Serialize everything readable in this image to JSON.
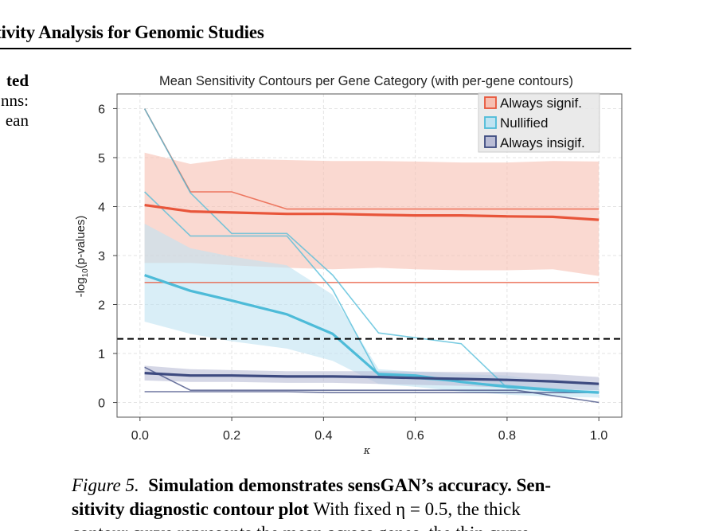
{
  "page": {
    "running_head": "tivity Analysis for Genomic Studies",
    "left_column_fragments": [
      "ted",
      "nns:",
      "ean"
    ],
    "caption": {
      "label": "Figure 5.",
      "title": "Simulation demonstrates sensGAN’s accuracy. Sensitivity diagnostic contour plot",
      "title_line1": "Simulation demonstrates sensGAN’s accuracy. Sen-",
      "title_line2": "sitivity diagnostic contour plot",
      "body": "With fixed η = 0.5, the thick",
      "body_line3": "contour curve represents the mean across genes, the thin curve"
    }
  },
  "colors": {
    "always_signif": "#e8553a",
    "always_signif_band": "#f6bfb2",
    "nullified": "#4dbbd8",
    "nullified_band": "#bfe3f1",
    "always_insignif": "#3d4a80",
    "always_insignif_band": "#b9bcd5",
    "threshold_line": "#000000",
    "grid": "#e3e3e3"
  },
  "chart_data": {
    "type": "line",
    "title": "Mean Sensitivity Contours per Gene Category (with per-gene contours)",
    "xlabel": "κ",
    "ylabel": "-log10(p-values)",
    "ylabel_main": "-log",
    "ylabel_sub": "10",
    "ylabel_tail": "(p-values)",
    "xlim": [
      -0.05,
      1.05
    ],
    "ylim": [
      -0.3,
      6.3
    ],
    "xticks": [
      0.0,
      0.2,
      0.4,
      0.6,
      0.8,
      1.0
    ],
    "xtick_labels": [
      "0.0",
      "0.2",
      "0.4",
      "0.6",
      "0.8",
      "1.0"
    ],
    "yticks": [
      0,
      1,
      2,
      3,
      4,
      5,
      6
    ],
    "ytick_labels": [
      "0",
      "1",
      "2",
      "3",
      "4",
      "5",
      "6"
    ],
    "grid": true,
    "legend_position": "top-right",
    "legend": [
      "Always signif.",
      "Nullified",
      "Always insigif."
    ],
    "threshold": 1.3,
    "x": [
      0.01,
      0.11,
      0.2,
      0.32,
      0.42,
      0.52,
      0.6,
      0.7,
      0.8,
      0.9,
      1.0
    ],
    "series": [
      {
        "name": "Always signif.",
        "color_key": "always_signif",
        "mean": [
          4.03,
          3.9,
          3.88,
          3.85,
          3.85,
          3.83,
          3.82,
          3.82,
          3.8,
          3.79,
          3.73
        ],
        "band_upper": [
          5.1,
          4.87,
          4.98,
          4.95,
          4.93,
          4.93,
          4.92,
          4.9,
          4.9,
          4.93,
          4.92
        ],
        "band_lower": [
          2.85,
          2.85,
          2.8,
          2.75,
          2.72,
          2.75,
          2.72,
          2.7,
          2.7,
          2.72,
          2.58
        ],
        "per_gene": [
          {
            "x": [
              0.01,
              0.11,
              0.2,
              0.32,
              1.0
            ],
            "y": [
              6.0,
              4.3,
              4.3,
              3.95,
              3.95
            ]
          },
          {
            "x": [
              0.01,
              1.0
            ],
            "y": [
              2.45,
              2.45
            ]
          }
        ]
      },
      {
        "name": "Nullified",
        "color_key": "nullified",
        "mean": [
          2.6,
          2.28,
          2.08,
          1.8,
          1.4,
          0.58,
          0.55,
          0.42,
          0.32,
          0.25,
          0.2
        ],
        "band_upper": [
          3.65,
          3.15,
          2.98,
          2.8,
          2.2,
          0.68,
          0.63,
          0.58,
          0.55,
          0.42,
          0.35
        ],
        "band_lower": [
          1.65,
          1.4,
          1.25,
          1.1,
          0.85,
          0.38,
          0.32,
          0.22,
          0.16,
          0.12,
          0.1
        ],
        "per_gene": [
          {
            "x": [
              0.01,
              0.11,
              0.2,
              0.32,
              0.42,
              0.52,
              0.7,
              0.8,
              1.0
            ],
            "y": [
              6.0,
              4.28,
              3.45,
              3.45,
              2.6,
              1.42,
              1.2,
              0.3,
              0.22
            ]
          },
          {
            "x": [
              0.01,
              0.11,
              0.32,
              0.42,
              0.52,
              1.0
            ],
            "y": [
              4.3,
              3.4,
              3.4,
              2.3,
              0.55,
              0.2
            ]
          }
        ]
      },
      {
        "name": "Always insigif.",
        "color_key": "always_insignif",
        "mean": [
          0.6,
          0.55,
          0.55,
          0.53,
          0.53,
          0.52,
          0.5,
          0.48,
          0.46,
          0.43,
          0.38
        ],
        "band_upper": [
          0.75,
          0.68,
          0.66,
          0.64,
          0.64,
          0.64,
          0.63,
          0.62,
          0.62,
          0.58,
          0.52
        ],
        "band_lower": [
          0.45,
          0.42,
          0.42,
          0.4,
          0.4,
          0.38,
          0.36,
          0.34,
          0.3,
          0.27,
          0.25
        ],
        "per_gene": [
          {
            "x": [
              0.01,
              0.11,
              0.82,
              1.0
            ],
            "y": [
              0.72,
              0.25,
              0.25,
              0.0
            ]
          },
          {
            "x": [
              0.01,
              0.11,
              0.32,
              0.42,
              1.0
            ],
            "y": [
              0.22,
              0.22,
              0.22,
              0.2,
              0.2
            ]
          }
        ]
      }
    ]
  }
}
